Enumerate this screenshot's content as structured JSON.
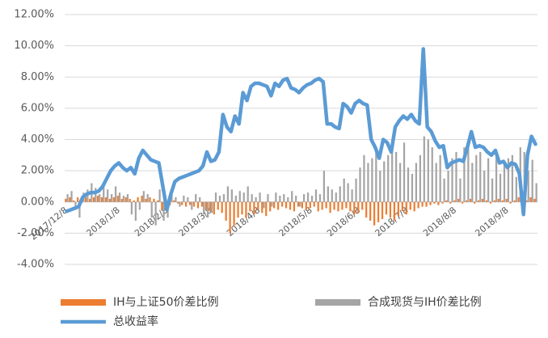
{
  "chart_data": {
    "type": "combo",
    "categories": [
      "2017/12/8",
      null,
      null,
      null,
      null,
      null,
      null,
      null,
      null,
      null,
      null,
      null,
      null,
      "2018/1/8",
      null,
      null,
      null,
      null,
      null,
      null,
      null,
      null,
      null,
      null,
      null,
      "2018/2/8",
      null,
      null,
      null,
      null,
      null,
      null,
      null,
      null,
      null,
      null,
      "2018/3/8",
      null,
      null,
      null,
      null,
      null,
      null,
      null,
      null,
      null,
      null,
      null,
      "2018/4/8",
      null,
      null,
      null,
      null,
      null,
      null,
      null,
      null,
      null,
      null,
      null,
      null,
      "2018/5/8",
      null,
      null,
      null,
      null,
      null,
      null,
      null,
      null,
      null,
      null,
      null,
      "2018/6/8",
      null,
      null,
      null,
      null,
      null,
      null,
      null,
      null,
      null,
      null,
      null,
      "2018/7/8",
      null,
      null,
      null,
      null,
      null,
      null,
      null,
      null,
      null,
      null,
      null,
      "2018/8/8",
      null,
      null,
      null,
      null,
      null,
      null,
      null,
      null,
      null,
      null,
      null,
      null,
      "2018/9/8",
      null,
      null,
      null,
      null,
      null,
      null,
      null
    ],
    "series": [
      {
        "name": "IH与上证50价差比例",
        "kind": "bar",
        "color": "#ED7D31",
        "values": [
          0.2,
          0.3,
          0.1,
          0.3,
          0.2,
          0.3,
          0.2,
          0.3,
          0.4,
          0.3,
          0.3,
          0.2,
          0.3,
          0.4,
          0.2,
          0.3,
          0.2,
          0.1,
          0.3,
          0.4,
          0.2,
          0.3,
          0.2,
          0.1,
          -0.5,
          -0.4,
          -0.2,
          0.1,
          -0.1,
          -0.2,
          -0.3,
          -0.2,
          -0.3,
          -0.4,
          -0.3,
          -0.5,
          -0.6,
          -0.8,
          -0.5,
          -0.7,
          -1.2,
          -2.0,
          -1.5,
          -1.0,
          -0.8,
          -1.0,
          -0.6,
          -0.8,
          -0.5,
          -0.7,
          -0.9,
          -0.6,
          -0.4,
          -0.5,
          -0.3,
          -0.4,
          -0.5,
          -0.6,
          -0.3,
          -0.4,
          -0.5,
          -0.4,
          -0.3,
          -0.6,
          -0.5,
          -0.4,
          -0.7,
          -0.5,
          -0.6,
          -0.5,
          -0.4,
          -0.6,
          -0.8,
          -0.7,
          -0.5,
          -1.0,
          -1.2,
          -1.5,
          -1.3,
          -1.1,
          -0.8,
          -1.0,
          -1.2,
          -0.9,
          -0.6,
          -0.8,
          -0.5,
          -0.6,
          -0.4,
          -0.3,
          -0.3,
          -0.2,
          -0.1,
          -0.2,
          -0.1,
          0.1,
          -0.1,
          0.1,
          0.2,
          -0.1,
          0.1,
          0.2,
          -0.1,
          0.1,
          0.2,
          0.1,
          -0.1,
          0.1,
          0.2,
          0.1,
          0.2,
          -0.1,
          0.1,
          0.3,
          0.2,
          0.1,
          0.3,
          0.2
        ]
      },
      {
        "name": "合成现货与IH价差比例",
        "kind": "bar",
        "color": "#A5A5A5",
        "values": [
          0.5,
          0.7,
          -0.5,
          -1.0,
          0.6,
          0.8,
          1.2,
          0.9,
          0.5,
          1.0,
          0.8,
          0.5,
          1.0,
          0.6,
          0.4,
          0.5,
          -0.8,
          -1.2,
          -0.5,
          0.7,
          0.5,
          -1.0,
          -1.5,
          0.8,
          -1.2,
          -1.0,
          0.5,
          0.3,
          -0.3,
          0.4,
          0.3,
          -0.5,
          0.5,
          0.3,
          -0.8,
          -1.0,
          -0.7,
          0.6,
          0.4,
          0.5,
          1.0,
          0.8,
          0.4,
          0.7,
          0.6,
          1.0,
          0.5,
          0.3,
          0.6,
          -0.4,
          0.5,
          -0.3,
          0.6,
          0.4,
          0.5,
          0.3,
          0.7,
          0.4,
          -0.3,
          0.5,
          0.6,
          0.4,
          0.8,
          0.5,
          2.0,
          1.0,
          0.8,
          0.6,
          1.0,
          1.5,
          1.2,
          0.8,
          1.5,
          2.2,
          3.0,
          2.5,
          2.8,
          3.5,
          2.0,
          2.6,
          3.0,
          4.0,
          3.2,
          2.5,
          3.8,
          2.2,
          1.8,
          2.5,
          3.0,
          4.2,
          4.0,
          3.5,
          2.5,
          3.0,
          1.5,
          2.0,
          2.8,
          3.2,
          1.5,
          3.5,
          3.8,
          2.5,
          3.0,
          3.2,
          2.0,
          2.8,
          1.5,
          3.0,
          1.8,
          2.5,
          2.8,
          3.0,
          1.6,
          3.5,
          3.2,
          2.0,
          2.7,
          1.2
        ]
      },
      {
        "name": "总收益率",
        "kind": "line",
        "color": "#5B9BD5",
        "values": [
          -0.6,
          -0.5,
          -0.4,
          -0.3,
          0.3,
          0.5,
          0.6,
          0.6,
          0.7,
          1.0,
          1.5,
          2.0,
          2.3,
          2.5,
          2.2,
          2.0,
          2.2,
          1.8,
          2.8,
          3.3,
          3.0,
          2.7,
          2.6,
          2.5,
          1.0,
          -0.5,
          0.5,
          1.3,
          1.5,
          1.6,
          1.7,
          1.8,
          1.9,
          2.0,
          2.3,
          3.2,
          2.6,
          2.7,
          3.2,
          5.6,
          4.8,
          4.5,
          5.5,
          5.0,
          7.0,
          6.5,
          7.4,
          7.6,
          7.6,
          7.5,
          7.4,
          6.8,
          7.6,
          7.4,
          7.8,
          7.9,
          7.3,
          7.2,
          7.0,
          7.3,
          7.5,
          7.6,
          7.8,
          7.9,
          7.7,
          5.0,
          5.0,
          4.8,
          4.7,
          6.3,
          6.1,
          5.7,
          6.3,
          6.5,
          6.3,
          6.2,
          4.0,
          3.5,
          2.8,
          4.0,
          3.8,
          3.2,
          4.8,
          5.2,
          5.5,
          5.3,
          5.6,
          5.2,
          5.0,
          9.8,
          4.8,
          4.5,
          3.9,
          3.5,
          3.6,
          2.2,
          2.5,
          2.6,
          2.7,
          2.6,
          3.5,
          4.5,
          3.5,
          3.6,
          3.5,
          3.2,
          3.0,
          3.3,
          2.5,
          2.6,
          2.2,
          2.5,
          2.4,
          1.8,
          -0.8,
          3.0,
          4.2,
          3.7
        ]
      }
    ],
    "ylim": [
      -4,
      12
    ],
    "yticks": [
      {
        "value": -4,
        "label": "-4.00%"
      },
      {
        "value": -2,
        "label": "-2.00%"
      },
      {
        "value": 0,
        "label": "0.00%"
      },
      {
        "value": 2,
        "label": "2.00%"
      },
      {
        "value": 4,
        "label": "4.00%"
      },
      {
        "value": 6,
        "label": "6.00%"
      },
      {
        "value": 8,
        "label": "8.00%"
      },
      {
        "value": 10,
        "label": "10.00%"
      },
      {
        "value": 12,
        "label": "12.00%"
      }
    ],
    "grid": true,
    "legend": "bottom"
  }
}
